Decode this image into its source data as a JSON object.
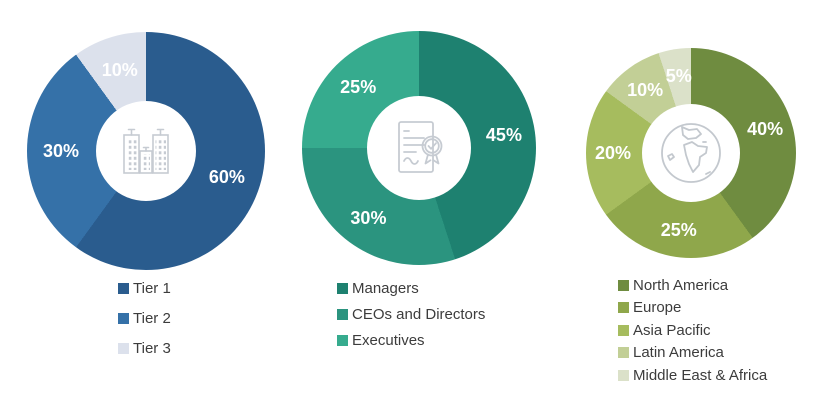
{
  "page": {
    "background": "#ffffff"
  },
  "chart_data": [
    {
      "type": "pie",
      "variant": "donut",
      "title": "",
      "name": "share-by-tier",
      "center_icon": "buildings-icon",
      "labels": [
        "Tier 1",
        "Tier 2",
        "Tier 3"
      ],
      "values": [
        60,
        30,
        10
      ],
      "data_labels": [
        "60%",
        "30%",
        "10%"
      ],
      "colors": [
        "#2A5C8E",
        "#3571A8",
        "#DCE1EC"
      ],
      "data_label_color": "#ffffff",
      "legend_position": "below",
      "start_angle_deg": 0,
      "direction": "clockwise"
    },
    {
      "type": "pie",
      "variant": "donut",
      "title": "",
      "name": "share-by-designation",
      "center_icon": "certificate-icon",
      "labels": [
        "Managers",
        "CEOs and Directors",
        "Executives"
      ],
      "values": [
        45,
        30,
        25
      ],
      "data_labels": [
        "45%",
        "30%",
        "25%"
      ],
      "colors": [
        "#1E8170",
        "#2B947F",
        "#36AB8E"
      ],
      "data_label_color": "#ffffff",
      "legend_position": "below",
      "start_angle_deg": 0,
      "direction": "clockwise"
    },
    {
      "type": "pie",
      "variant": "donut",
      "title": "",
      "name": "share-by-region",
      "center_icon": "globe-icon",
      "labels": [
        "North America",
        "Europe",
        "Asia Pacific",
        "Latin America",
        "Middle East & Africa"
      ],
      "values": [
        40,
        25,
        20,
        10,
        5
      ],
      "data_labels": [
        "40%",
        "25%",
        "20%",
        "10%",
        "5%"
      ],
      "colors": [
        "#6F8C40",
        "#8FA74B",
        "#A6BC5E",
        "#C2CF96",
        "#DBE1C9"
      ],
      "data_label_color": "#ffffff",
      "legend_position": "below",
      "start_angle_deg": 0,
      "direction": "clockwise"
    }
  ],
  "legend_text_color": "#3c3c3c",
  "icon_stroke_color": "#c6cbd2"
}
